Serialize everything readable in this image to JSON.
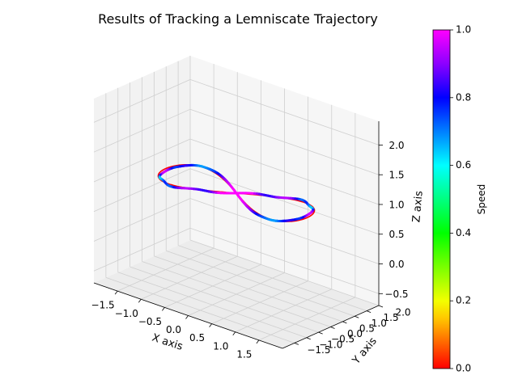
{
  "chart_data": {
    "type": "line",
    "projection": "3d",
    "title": "Results of Tracking a Lemniscate Trajectory",
    "xlabel": "X axis",
    "ylabel": "Y axis",
    "zlabel": "Z axis",
    "xlim": [
      -2.0,
      2.0
    ],
    "ylim": [
      -2.0,
      2.0
    ],
    "zlim": [
      -0.7,
      2.4
    ],
    "xticks": [
      -1.5,
      -1.0,
      -0.5,
      0.0,
      0.5,
      1.0,
      1.5
    ],
    "yticks": [
      -1.5,
      -1.0,
      -0.5,
      0.0,
      0.5,
      1.0,
      1.5,
      2.0
    ],
    "zticks": [
      -0.5,
      0.0,
      0.5,
      1.0,
      1.5,
      2.0
    ],
    "xtick_labels": [
      "−1.5",
      "−1.0",
      "−0.5",
      "0.0",
      "0.5",
      "1.0",
      "1.5"
    ],
    "ytick_labels": [
      "−1.5",
      "−1.0",
      "−0.5",
      "0.0",
      "0.5",
      "1.0",
      "1.5",
      "2.0"
    ],
    "ztick_labels": [
      "−0.5",
      "0.0",
      "0.5",
      "1.0",
      "1.5",
      "2.0"
    ],
    "grid": true,
    "colorbar": {
      "label": "Speed",
      "range": [
        0.0,
        1.0
      ],
      "ticks": [
        0.0,
        0.2,
        0.4,
        0.6,
        0.8,
        1.0
      ],
      "tick_labels": [
        "0.0",
        "0.2",
        "0.4",
        "0.6",
        "0.8",
        "1.0"
      ],
      "colormap": "gist_rainbow_r"
    },
    "series": [
      {
        "role": "reference",
        "color": "#ff0000",
        "curve": "lemniscate of Gerono",
        "x_amplitude": 1.5,
        "y_amplitude": 0.75,
        "z": 1.0,
        "samples": 200
      },
      {
        "role": "tracked",
        "color_by": "speed",
        "curve": "lemniscate of Gerono with tracking ripple",
        "x_amplitude": 1.5,
        "y_amplitude": 0.75,
        "z": 1.0,
        "samples": 240
      }
    ]
  }
}
